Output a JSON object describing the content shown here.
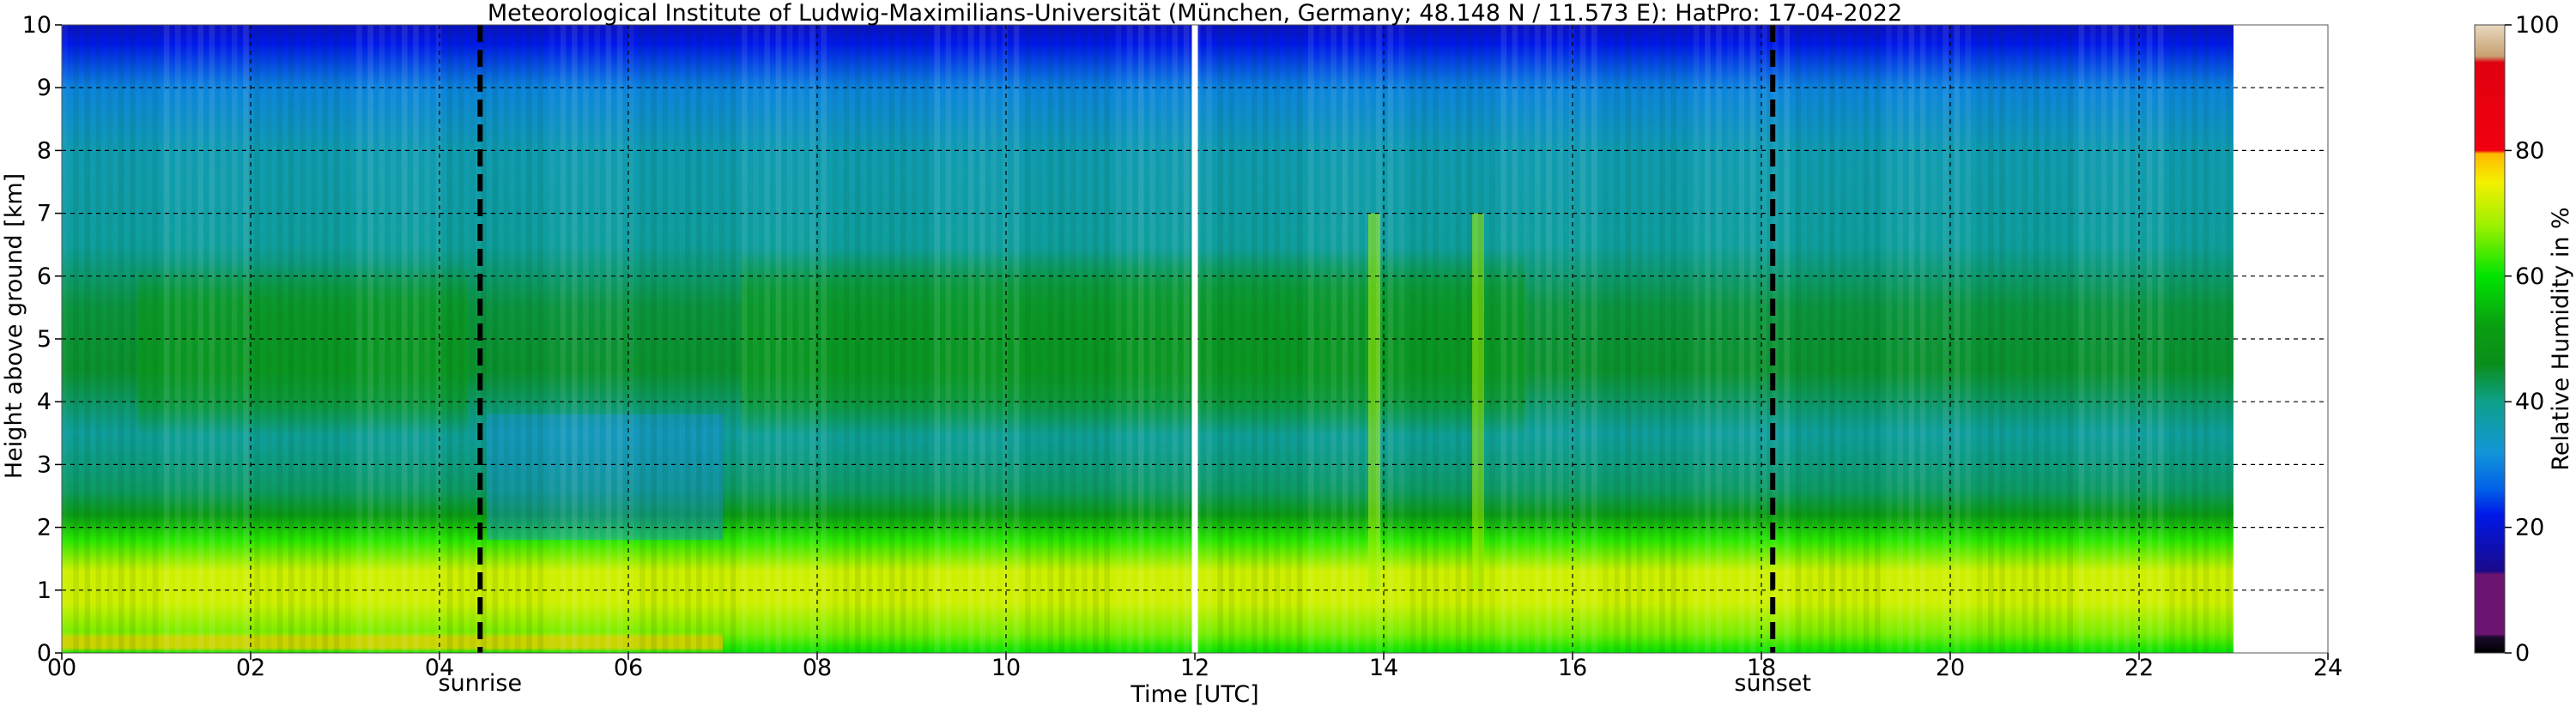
{
  "chart_data": {
    "type": "heatmap",
    "title": "Meteorological Institute of Ludwig-Maximilians-Universität (München, Germany; 48.148 N / 11.573 E):    HatPro: 17-04-2022",
    "xlabel": "Time [UTC]",
    "ylabel": "Height above ground [km]",
    "xlim": [
      0,
      24
    ],
    "ylim": [
      0,
      10
    ],
    "data_time_range": [
      0,
      23
    ],
    "x_ticks": [
      "00",
      "02",
      "04",
      "06",
      "08",
      "10",
      "12",
      "14",
      "16",
      "18",
      "20",
      "22",
      "24"
    ],
    "x_tick_values": [
      0,
      2,
      4,
      6,
      8,
      10,
      12,
      14,
      16,
      18,
      20,
      22,
      24
    ],
    "y_ticks": [
      "0",
      "1",
      "2",
      "3",
      "4",
      "5",
      "6",
      "7",
      "8",
      "9",
      "10"
    ],
    "y_tick_values": [
      0,
      1,
      2,
      3,
      4,
      5,
      6,
      7,
      8,
      9,
      10
    ],
    "grid": true,
    "annotations": [
      {
        "label": "sunrise",
        "time": 4.43,
        "style": "dashed"
      },
      {
        "label": "sunset",
        "time": 18.12,
        "style": "dashed"
      }
    ],
    "current_time_marker": 12.0,
    "colorbar": {
      "label": "Relative Humidity in %",
      "range": [
        0,
        100
      ],
      "ticks": [
        "0",
        "20",
        "40",
        "60",
        "80",
        "100"
      ],
      "tick_values": [
        0,
        20,
        40,
        60,
        80,
        100
      ],
      "stops": [
        {
          "value": 0,
          "color": "#000000"
        },
        {
          "value": 2.5,
          "color": "#1a0a2a"
        },
        {
          "value": 3,
          "color": "#6a1470"
        },
        {
          "value": 12.5,
          "color": "#6a1470"
        },
        {
          "value": 13,
          "color": "#1a0a8a"
        },
        {
          "value": 22,
          "color": "#0018e8"
        },
        {
          "value": 26,
          "color": "#0060e8"
        },
        {
          "value": 32,
          "color": "#1296d8"
        },
        {
          "value": 40,
          "color": "#0ea08a"
        },
        {
          "value": 46,
          "color": "#0a8e1a"
        },
        {
          "value": 52,
          "color": "#0a9e12"
        },
        {
          "value": 60,
          "color": "#00e400"
        },
        {
          "value": 68,
          "color": "#9cf000"
        },
        {
          "value": 75,
          "color": "#f4f000"
        },
        {
          "value": 79.5,
          "color": "#ffb800"
        },
        {
          "value": 80,
          "color": "#f00010"
        },
        {
          "value": 94,
          "color": "#e00010"
        },
        {
          "value": 95,
          "color": "#c8a070"
        },
        {
          "value": 100,
          "color": "#e8d8c0"
        }
      ]
    },
    "humidity_profile": [
      {
        "height": 0.0,
        "rh": 60
      },
      {
        "height": 0.3,
        "rh": 66
      },
      {
        "height": 0.8,
        "rh": 72
      },
      {
        "height": 1.3,
        "rh": 72
      },
      {
        "height": 1.8,
        "rh": 62
      },
      {
        "height": 2.2,
        "rh": 50
      },
      {
        "height": 2.6,
        "rh": 42
      },
      {
        "height": 3.5,
        "rh": 38
      },
      {
        "height": 4.5,
        "rh": 45
      },
      {
        "height": 5.5,
        "rh": 44
      },
      {
        "height": 6.5,
        "rh": 38
      },
      {
        "height": 8.0,
        "rh": 36
      },
      {
        "height": 9.0,
        "rh": 30
      },
      {
        "height": 9.7,
        "rh": 22
      },
      {
        "height": 10.0,
        "rh": 18
      }
    ]
  }
}
